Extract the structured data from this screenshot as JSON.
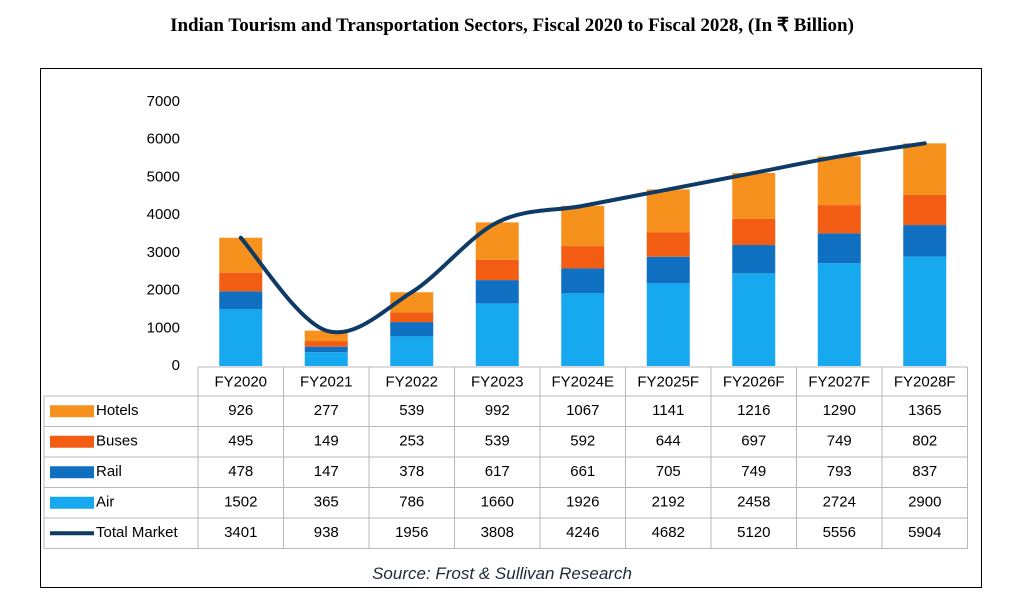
{
  "title": "Indian Tourism and Transportation Sectors, Fiscal 2020 to Fiscal 2028, (In ₹ Billion)",
  "source": "Source: Frost & Sullivan Research",
  "colors": {
    "hotels": "#f6911e",
    "buses": "#f25c13",
    "rail": "#0f6fc0",
    "air": "#16a9ef",
    "total": "#0e3a66",
    "grid_border": "#b9b9b9"
  },
  "chart_data": {
    "type": "bar",
    "stacked": true,
    "categories": [
      "FY2020",
      "FY2021",
      "FY2022",
      "FY2023",
      "FY2024E",
      "FY2025F",
      "FY2026F",
      "FY2027F",
      "FY2028F"
    ],
    "y_ticks": [
      "0",
      "1000",
      "2000",
      "3000",
      "4000",
      "5000",
      "6000",
      "7000"
    ],
    "ylim": [
      0,
      7000
    ],
    "series": [
      {
        "name": "Air",
        "key": "air",
        "values": [
          1502,
          365,
          786,
          1660,
          1926,
          2192,
          2458,
          2724,
          2900
        ]
      },
      {
        "name": "Rail",
        "key": "rail",
        "values": [
          478,
          147,
          378,
          617,
          661,
          705,
          749,
          793,
          837
        ]
      },
      {
        "name": "Buses",
        "key": "buses",
        "values": [
          495,
          149,
          253,
          539,
          592,
          644,
          697,
          749,
          802
        ]
      },
      {
        "name": "Hotels",
        "key": "hotels",
        "values": [
          926,
          277,
          539,
          992,
          1067,
          1141,
          1216,
          1290,
          1365
        ]
      }
    ],
    "line": {
      "name": "Total Market",
      "key": "total",
      "values": [
        3401,
        938,
        1956,
        3808,
        4246,
        4682,
        5120,
        5556,
        5904
      ]
    },
    "table_rows": [
      {
        "label": "Hotels",
        "key": "hotels",
        "marker": "box",
        "values": [
          "926",
          "277",
          "539",
          "992",
          "1067",
          "1141",
          "1216",
          "1290",
          "1365"
        ]
      },
      {
        "label": "Buses",
        "key": "buses",
        "marker": "box",
        "values": [
          "495",
          "149",
          "253",
          "539",
          "592",
          "644",
          "697",
          "749",
          "802"
        ]
      },
      {
        "label": "Rail",
        "key": "rail",
        "marker": "box",
        "values": [
          "478",
          "147",
          "378",
          "617",
          "661",
          "705",
          "749",
          "793",
          "837"
        ]
      },
      {
        "label": "Air",
        "key": "air",
        "marker": "box",
        "values": [
          "1502",
          "365",
          "786",
          "1660",
          "1926",
          "2192",
          "2458",
          "2724",
          "2900"
        ]
      },
      {
        "label": "Total Market",
        "key": "total",
        "marker": "line",
        "values": [
          "3401",
          "938",
          "1956",
          "3808",
          "4246",
          "4682",
          "5120",
          "5556",
          "5904"
        ]
      }
    ]
  }
}
